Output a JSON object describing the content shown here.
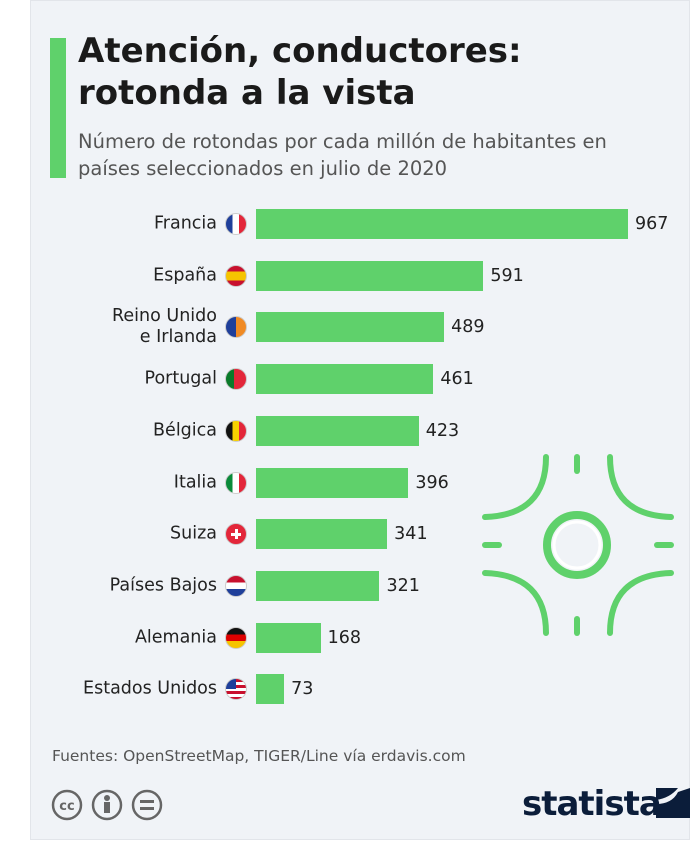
{
  "chart_data": {
    "type": "bar",
    "orientation": "horizontal",
    "title": "Atención, conductores: rotonda a la vista",
    "subtitle": "Número de rotondas por cada millón de habitantes en países seleccionados en julio de 2020",
    "categories": [
      "Francia",
      "España",
      "Reino Unido\ne Irlanda",
      "Portugal",
      "Bélgica",
      "Italia",
      "Suiza",
      "Países Bajos",
      "Alemania",
      "Estados Unidos"
    ],
    "values": [
      967,
      591,
      489,
      461,
      423,
      396,
      341,
      321,
      168,
      73
    ],
    "color": "#5fd16b",
    "source": "Fuentes: OpenStreetMap, TIGER/Line vía erdavis.com",
    "brand": "statista"
  }
}
